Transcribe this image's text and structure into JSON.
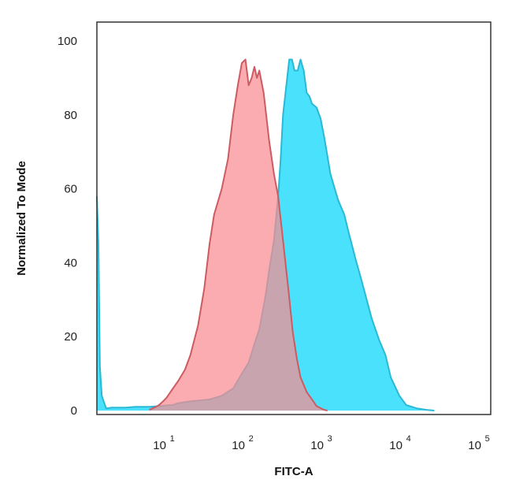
{
  "chart_data": {
    "type": "area",
    "title": "",
    "xlabel": "FITC-A",
    "ylabel": "Normalized To Mode",
    "xscale": "log",
    "xlim": [
      1.3,
      130000
    ],
    "ylim": [
      0,
      100
    ],
    "grid": false,
    "y_ticks": [
      {
        "value": 0,
        "label": "0"
      },
      {
        "value": 20,
        "label": "20"
      },
      {
        "value": 40,
        "label": "40"
      },
      {
        "value": 60,
        "label": "60"
      },
      {
        "value": 80,
        "label": "80"
      },
      {
        "value": 100,
        "label": "100"
      }
    ],
    "x_ticks": [
      {
        "value": 10,
        "base": "10",
        "exp": "1"
      },
      {
        "value": 100,
        "base": "10",
        "exp": "2"
      },
      {
        "value": 1000,
        "base": "10",
        "exp": "3"
      },
      {
        "value": 10000,
        "base": "10",
        "exp": "4"
      },
      {
        "value": 100000,
        "base": "10",
        "exp": "5"
      }
    ],
    "series": [
      {
        "color": "#49e1fb",
        "stroke": "#2bb8d4",
        "points": [
          [
            1.3,
            58
          ],
          [
            1.36,
            45
          ],
          [
            1.42,
            12
          ],
          [
            1.5,
            4
          ],
          [
            1.7,
            0.6
          ],
          [
            2,
            0.8
          ],
          [
            3,
            0.8
          ],
          [
            4,
            1
          ],
          [
            6,
            1
          ],
          [
            8,
            1.2
          ],
          [
            10,
            1.4
          ],
          [
            12,
            1.5
          ],
          [
            14,
            2
          ],
          [
            20,
            2.5
          ],
          [
            35,
            3
          ],
          [
            50,
            4
          ],
          [
            70,
            6
          ],
          [
            90,
            10
          ],
          [
            110,
            13
          ],
          [
            130,
            18
          ],
          [
            150,
            22
          ],
          [
            180,
            31
          ],
          [
            200,
            38
          ],
          [
            230,
            46
          ],
          [
            260,
            58
          ],
          [
            280,
            68
          ],
          [
            300,
            80
          ],
          [
            330,
            88
          ],
          [
            360,
            95
          ],
          [
            390,
            95
          ],
          [
            420,
            92
          ],
          [
            460,
            92
          ],
          [
            500,
            95
          ],
          [
            550,
            92
          ],
          [
            600,
            86
          ],
          [
            650,
            85
          ],
          [
            700,
            83
          ],
          [
            800,
            82
          ],
          [
            900,
            79
          ],
          [
            1000,
            74
          ],
          [
            1200,
            64
          ],
          [
            1500,
            57
          ],
          [
            1800,
            53
          ],
          [
            2000,
            49
          ],
          [
            2500,
            41
          ],
          [
            3000,
            35
          ],
          [
            4000,
            25
          ],
          [
            5000,
            19
          ],
          [
            6000,
            15
          ],
          [
            7000,
            9
          ],
          [
            9000,
            4
          ],
          [
            11000,
            1.5
          ],
          [
            15000,
            0.6
          ],
          [
            20000,
            0.2
          ],
          [
            25000,
            0
          ]
        ]
      },
      {
        "color": "#fa8c92",
        "stroke": "#cc5b62",
        "points": [
          [
            6,
            0.2
          ],
          [
            7,
            0.8
          ],
          [
            8,
            1.5
          ],
          [
            9,
            2.5
          ],
          [
            10,
            3.5
          ],
          [
            12,
            6
          ],
          [
            14,
            8
          ],
          [
            17,
            11
          ],
          [
            20,
            15
          ],
          [
            25,
            23
          ],
          [
            30,
            33
          ],
          [
            35,
            45
          ],
          [
            40,
            53
          ],
          [
            50,
            60
          ],
          [
            60,
            68
          ],
          [
            70,
            80
          ],
          [
            80,
            88
          ],
          [
            90,
            94
          ],
          [
            100,
            95
          ],
          [
            110,
            88
          ],
          [
            120,
            90
          ],
          [
            130,
            93
          ],
          [
            140,
            90
          ],
          [
            150,
            92
          ],
          [
            170,
            86
          ],
          [
            200,
            73
          ],
          [
            230,
            64
          ],
          [
            260,
            58
          ],
          [
            300,
            46
          ],
          [
            350,
            33
          ],
          [
            400,
            21
          ],
          [
            450,
            14
          ],
          [
            500,
            9
          ],
          [
            600,
            5
          ],
          [
            700,
            3
          ],
          [
            800,
            1.2
          ],
          [
            1000,
            0.2
          ],
          [
            1100,
            0
          ]
        ]
      }
    ]
  }
}
